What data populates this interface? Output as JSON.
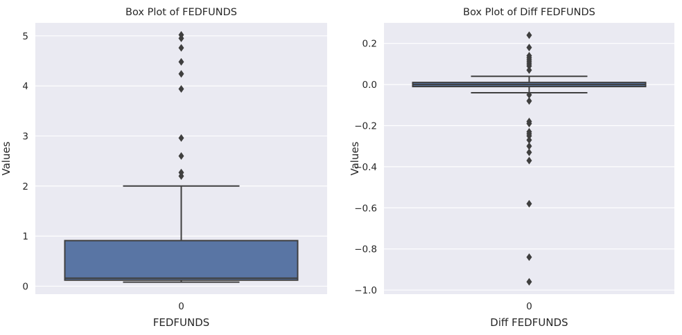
{
  "chart_data": [
    {
      "type": "box",
      "title": "Box Plot of FEDFUNDS",
      "xlabel": "FEDFUNDS",
      "ylabel": "Values",
      "categories": [
        "0"
      ],
      "ylim": [
        -0.16,
        5.26
      ],
      "yticks": [
        0,
        1,
        2,
        3,
        4,
        5
      ],
      "ytick_labels": [
        "0",
        "1",
        "2",
        "3",
        "4",
        "5"
      ],
      "grid": true,
      "box": {
        "whisker_low": 0.08,
        "q1": 0.12,
        "median": 0.16,
        "q3": 0.91,
        "whisker_high": 2.0
      },
      "outliers": [
        5.02,
        4.95,
        4.76,
        4.48,
        4.24,
        3.94,
        2.96,
        2.6,
        2.27,
        2.2
      ],
      "box_color": "#5975a4",
      "edge_color": "#3f3f3f"
    },
    {
      "type": "box",
      "title": "Box Plot of Diff FEDFUNDS",
      "xlabel": "Diff FEDFUNDS",
      "ylabel": "Values",
      "categories": [
        "0"
      ],
      "ylim": [
        -1.02,
        0.3
      ],
      "yticks": [
        0.2,
        0.0,
        -0.2,
        -0.4,
        -0.6,
        -0.8,
        -1.0
      ],
      "ytick_labels": [
        "0.2",
        "0.0",
        "−0.2",
        "−0.4",
        "−0.6",
        "−0.8",
        "−1.0"
      ],
      "grid": true,
      "box": {
        "whisker_low": -0.04,
        "q1": -0.01,
        "median": 0.0,
        "q3": 0.01,
        "whisker_high": 0.04
      },
      "outliers": [
        0.24,
        0.18,
        0.14,
        0.13,
        0.12,
        0.11,
        0.1,
        0.09,
        0.07,
        -0.05,
        -0.08,
        -0.18,
        -0.19,
        -0.23,
        -0.24,
        -0.25,
        -0.27,
        -0.3,
        -0.33,
        -0.37,
        -0.58,
        -0.84,
        -0.96
      ],
      "box_color": "#5975a4",
      "edge_color": "#3f3f3f"
    }
  ],
  "style": {
    "panel_background": "#eaeaf2",
    "grid_color": "#ffffff"
  }
}
